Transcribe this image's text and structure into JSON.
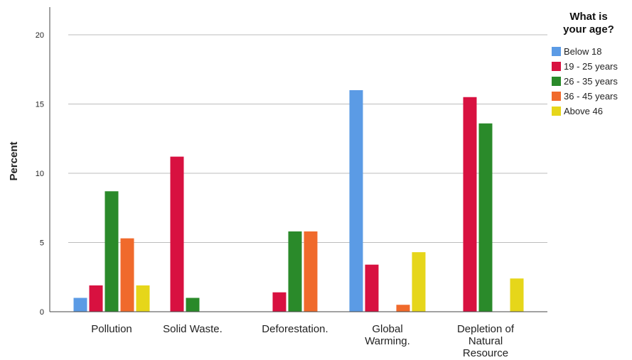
{
  "chart_data": {
    "type": "bar",
    "title": "",
    "xlabel": "",
    "ylabel": "Percent",
    "ylim": [
      0,
      20
    ],
    "yticks": [
      0,
      5,
      10,
      15,
      20
    ],
    "grid": "horizontal",
    "categories": [
      [
        "Pollution"
      ],
      [
        "Solid Waste."
      ],
      [
        "Deforestation."
      ],
      [
        "Global",
        "Warming."
      ],
      [
        "Depletion of",
        "Natural",
        "Resource"
      ]
    ],
    "legend": {
      "title": [
        "What is",
        "your age?"
      ],
      "position": "top-right"
    },
    "series": [
      {
        "name": "Below 18",
        "color": "#5b9be5",
        "values": [
          1.0,
          0,
          0,
          16.0,
          0
        ]
      },
      {
        "name": "19 - 25 years",
        "color": "#d81140",
        "values": [
          1.9,
          11.2,
          1.4,
          3.4,
          15.5
        ]
      },
      {
        "name": "26 - 35 years",
        "color": "#2a8a2a",
        "values": [
          8.7,
          1.0,
          5.8,
          0,
          13.6
        ]
      },
      {
        "name": "36 - 45 years",
        "color": "#f06a2c",
        "values": [
          5.3,
          0,
          5.8,
          0.5,
          0
        ]
      },
      {
        "name": "Above 46",
        "color": "#e6d61a",
        "values": [
          1.9,
          0,
          0,
          4.3,
          2.4
        ]
      }
    ]
  }
}
